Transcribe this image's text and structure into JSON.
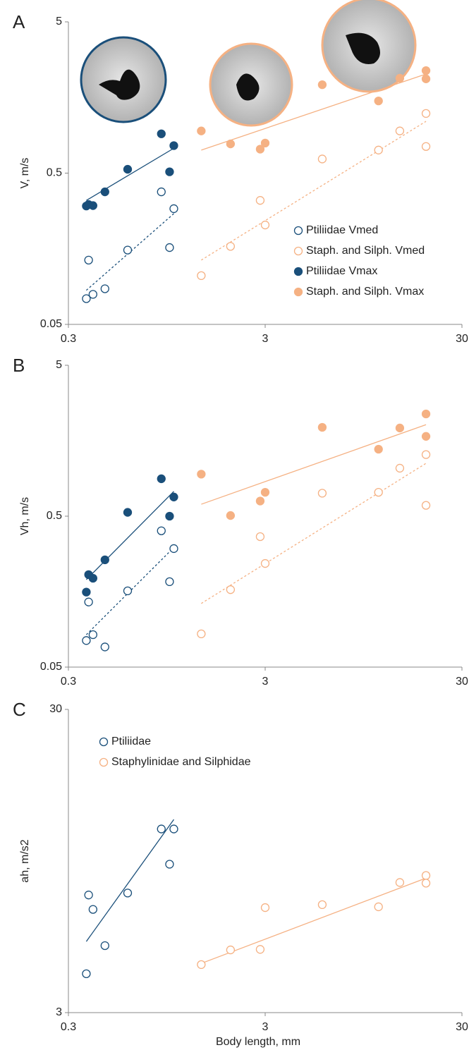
{
  "chart_data": [
    {
      "type": "scatter",
      "panel": "A",
      "ylabel": "V, m/s",
      "xscale": "log",
      "yscale": "log",
      "xlim": [
        0.3,
        30
      ],
      "ylim": [
        0.05,
        5
      ],
      "xticks": [
        0.3,
        3,
        30
      ],
      "yticks": [
        0.05,
        0.5,
        5
      ],
      "legend": "lower right",
      "series": [
        {
          "name": "Ptiliidae Vmed",
          "color": "#1a4f7a",
          "filled": false,
          "x": [
            0.37,
            0.38,
            0.4,
            0.46,
            0.6,
            0.89,
            0.98,
            1.03
          ],
          "values": [
            0.074,
            0.133,
            0.079,
            0.086,
            0.155,
            0.376,
            0.161,
            0.291
          ]
        },
        {
          "name": "Staph. and Silph. Vmed",
          "color": "#f5b183",
          "filled": false,
          "x": [
            1.42,
            2.0,
            2.83,
            3.0,
            5.85,
            11.3,
            14.5,
            19.7,
            19.7
          ],
          "values": [
            0.105,
            0.164,
            0.33,
            0.227,
            0.62,
            0.71,
            0.95,
            1.24,
            0.75
          ]
        },
        {
          "name": "Ptiliidae Vmax",
          "color": "#1a4f7a",
          "filled": true,
          "x": [
            0.37,
            0.38,
            0.4,
            0.46,
            0.6,
            0.89,
            0.98,
            1.03
          ],
          "values": [
            0.303,
            0.31,
            0.305,
            0.376,
            0.53,
            0.91,
            0.51,
            0.76
          ]
        },
        {
          "name": "Staph. and Silph. Vmax",
          "color": "#f5b183",
          "filled": true,
          "x": [
            1.42,
            2.0,
            2.83,
            3.0,
            5.85,
            11.3,
            14.5,
            19.7,
            19.7
          ],
          "values": [
            0.95,
            0.78,
            0.72,
            0.79,
            1.92,
            1.5,
            2.12,
            2.38,
            2.1
          ]
        }
      ],
      "trendlines": [
        {
          "color": "#1a4f7a",
          "dashed": false,
          "x": [
            0.37,
            1.03
          ],
          "values": [
            0.33,
            0.73
          ]
        },
        {
          "color": "#1a4f7a",
          "dashed": true,
          "x": [
            0.37,
            1.03
          ],
          "values": [
            0.084,
            0.27
          ]
        },
        {
          "color": "#f5b183",
          "dashed": false,
          "x": [
            1.42,
            19.7
          ],
          "values": [
            0.71,
            2.26
          ]
        },
        {
          "color": "#f5b183",
          "dashed": true,
          "x": [
            1.42,
            19.7
          ],
          "values": [
            0.133,
            1.1
          ]
        }
      ]
    },
    {
      "type": "scatter",
      "panel": "B",
      "ylabel": "Vh, m/s",
      "xscale": "log",
      "yscale": "log",
      "xlim": [
        0.3,
        30
      ],
      "ylim": [
        0.05,
        5
      ],
      "xticks": [
        0.3,
        3,
        30
      ],
      "yticks": [
        0.05,
        0.5,
        5
      ],
      "series": [
        {
          "color": "#1a4f7a",
          "filled": false,
          "x": [
            0.37,
            0.38,
            0.4,
            0.46,
            0.6,
            0.89,
            0.98,
            1.03
          ],
          "values": [
            0.075,
            0.135,
            0.082,
            0.068,
            0.16,
            0.4,
            0.184,
            0.305
          ]
        },
        {
          "color": "#f5b183",
          "filled": false,
          "x": [
            1.42,
            2.0,
            2.83,
            3.0,
            5.85,
            11.3,
            14.5,
            19.7,
            19.7
          ],
          "values": [
            0.083,
            0.163,
            0.366,
            0.243,
            0.71,
            0.72,
            1.04,
            1.28,
            0.59
          ]
        },
        {
          "color": "#1a4f7a",
          "filled": true,
          "x": [
            0.37,
            0.38,
            0.4,
            0.46,
            0.6,
            0.89,
            0.98,
            1.03
          ],
          "values": [
            0.157,
            0.205,
            0.194,
            0.257,
            0.53,
            0.885,
            0.5,
            0.67
          ]
        },
        {
          "color": "#f5b183",
          "filled": true,
          "x": [
            1.42,
            2.0,
            2.83,
            3.0,
            5.85,
            11.3,
            14.5,
            19.7,
            19.7
          ],
          "values": [
            0.95,
            0.505,
            0.63,
            0.72,
            1.94,
            1.39,
            1.92,
            2.38,
            1.69
          ]
        }
      ],
      "trendlines": [
        {
          "color": "#1a4f7a",
          "dashed": false,
          "x": [
            0.37,
            1.03
          ],
          "values": [
            0.19,
            0.73
          ]
        },
        {
          "color": "#1a4f7a",
          "dashed": true,
          "x": [
            0.37,
            1.03
          ],
          "values": [
            0.082,
            0.31
          ]
        },
        {
          "color": "#f5b183",
          "dashed": false,
          "x": [
            1.42,
            19.7
          ],
          "values": [
            0.6,
            2.02
          ]
        },
        {
          "color": "#f5b183",
          "dashed": true,
          "x": [
            1.42,
            19.7
          ],
          "values": [
            0.132,
            1.12
          ]
        }
      ]
    },
    {
      "type": "scatter",
      "panel": "C",
      "ylabel": "ah, m/s2",
      "xlabel": "Body length,  mm",
      "xscale": "log",
      "yscale": "log",
      "xlim": [
        0.3,
        30
      ],
      "ylim": [
        3,
        30
      ],
      "xticks": [
        0.3,
        3,
        30
      ],
      "yticks": [
        3,
        30
      ],
      "legend": "upper left",
      "series": [
        {
          "name": "Ptiliidae",
          "color": "#1a4f7a",
          "filled": false,
          "x": [
            0.37,
            0.38,
            0.4,
            0.46,
            0.6,
            0.89,
            0.98,
            1.03
          ],
          "values": [
            4.03,
            7.33,
            6.57,
            4.99,
            7.44,
            12.1,
            9.26,
            12.1
          ]
        },
        {
          "name": "Staphylinidae and Silphidae",
          "color": "#f5b183",
          "filled": false,
          "x": [
            1.42,
            2.0,
            2.83,
            3.0,
            5.85,
            11.3,
            14.5,
            19.7,
            19.7
          ],
          "values": [
            4.32,
            4.83,
            4.85,
            6.66,
            6.81,
            6.7,
            8.06,
            8.5,
            8.02
          ]
        }
      ],
      "trendlines": [
        {
          "color": "#1a4f7a",
          "dashed": false,
          "x": [
            0.37,
            1.03
          ],
          "values": [
            5.15,
            13.0
          ]
        },
        {
          "color": "#f5b183",
          "dashed": false,
          "x": [
            1.42,
            19.7
          ],
          "values": [
            4.36,
            8.33
          ]
        }
      ]
    }
  ]
}
